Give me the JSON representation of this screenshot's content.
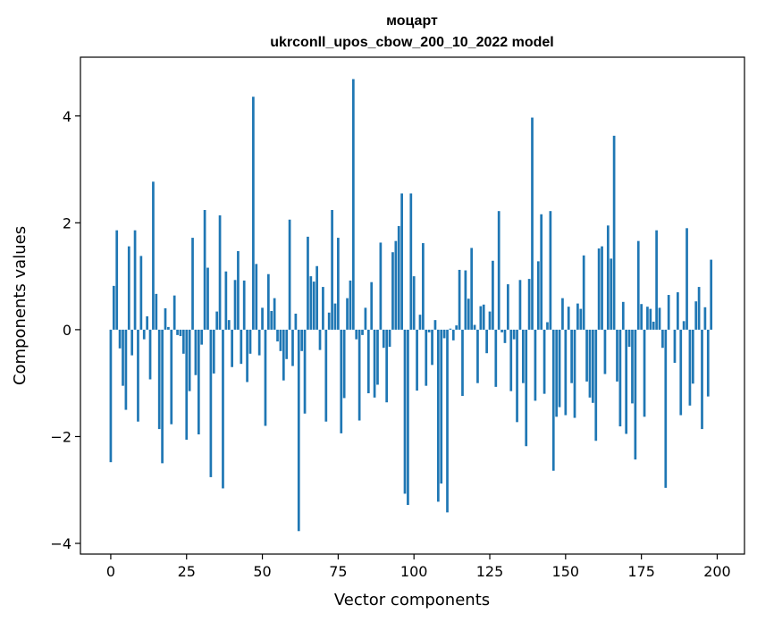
{
  "chart_data": {
    "type": "bar",
    "title": "моцарт",
    "subtitle": "ukrconll_upos_cbow_200_10_2022 model",
    "xlabel": "Vector components",
    "ylabel": "Components values",
    "xlim": [
      -10,
      209
    ],
    "ylim": [
      -4.2,
      5.1
    ],
    "xticks": [
      0,
      25,
      50,
      75,
      100,
      125,
      150,
      175,
      200
    ],
    "yticks": [
      -4,
      -2,
      0,
      2,
      4
    ],
    "xtick_labels": [
      "0",
      "25",
      "50",
      "75",
      "100",
      "125",
      "150",
      "175",
      "200"
    ],
    "ytick_labels": [
      "−4",
      "−2",
      "0",
      "2",
      "4"
    ],
    "bar_color": "#1f77b4",
    "grid": false,
    "values": [
      -2.48,
      0.82,
      1.86,
      -0.35,
      -1.05,
      -1.5,
      1.56,
      -0.48,
      1.86,
      -1.72,
      1.38,
      -0.18,
      0.25,
      -0.93,
      2.77,
      0.67,
      -1.86,
      -2.5,
      0.4,
      0.05,
      -1.77,
      0.64,
      -0.1,
      -0.12,
      -0.45,
      -2.06,
      -1.15,
      1.72,
      -0.85,
      -1.96,
      -0.28,
      2.24,
      1.16,
      -2.76,
      -0.82,
      0.34,
      2.14,
      -2.97,
      1.09,
      0.18,
      -0.7,
      0.93,
      1.47,
      -0.64,
      0.92,
      -0.98,
      -0.45,
      4.36,
      1.23,
      -0.48,
      0.41,
      -1.8,
      1.04,
      0.35,
      0.59,
      -0.22,
      -0.4,
      -0.95,
      -0.55,
      2.06,
      -0.68,
      0.3,
      -3.77,
      -0.4,
      -1.57,
      1.74,
      1.0,
      0.9,
      1.19,
      -0.38,
      0.8,
      -1.72,
      0.32,
      2.24,
      0.49,
      1.72,
      -1.94,
      -1.28,
      0.59,
      0.92,
      4.69,
      -0.18,
      -1.7,
      -0.1,
      0.41,
      -1.19,
      0.89,
      -1.27,
      -1.03,
      1.63,
      -0.34,
      -1.36,
      -0.32,
      1.45,
      1.66,
      1.94,
      2.55,
      -3.07,
      -3.28,
      2.55,
      1.0,
      -1.14,
      0.28,
      1.62,
      -1.05,
      -0.05,
      -0.66,
      0.18,
      -3.22,
      -2.88,
      -0.16,
      -3.42,
      0.02,
      -0.2,
      0.08,
      1.12,
      -1.24,
      1.11,
      0.58,
      1.53,
      0.09,
      -1.0,
      0.44,
      0.47,
      -0.44,
      0.34,
      1.29,
      -1.07,
      2.22,
      -0.05,
      -0.25,
      0.85,
      -1.15,
      -0.18,
      -1.73,
      0.93,
      -1.0,
      -2.18,
      0.95,
      3.97,
      -1.33,
      1.28,
      2.16,
      -1.2,
      0.14,
      2.22,
      -2.64,
      -1.63,
      -1.45,
      0.59,
      -1.6,
      0.43,
      -1.0,
      -1.65,
      0.49,
      0.39,
      1.39,
      -0.97,
      -1.27,
      -1.37,
      -2.08,
      1.52,
      1.56,
      -0.83,
      1.95,
      1.33,
      3.63,
      -0.97,
      -1.81,
      0.52,
      -1.95,
      -0.32,
      -1.38,
      -2.43,
      1.66,
      0.48,
      -1.63,
      0.43,
      0.39,
      0.15,
      1.86,
      0.41,
      -0.34,
      -2.96,
      0.65,
      0.0,
      -0.62,
      0.7,
      -1.6,
      0.16,
      1.9,
      -1.42,
      -1.01,
      0.53,
      0.8,
      -1.86,
      0.42,
      -1.25,
      1.31
    ]
  }
}
